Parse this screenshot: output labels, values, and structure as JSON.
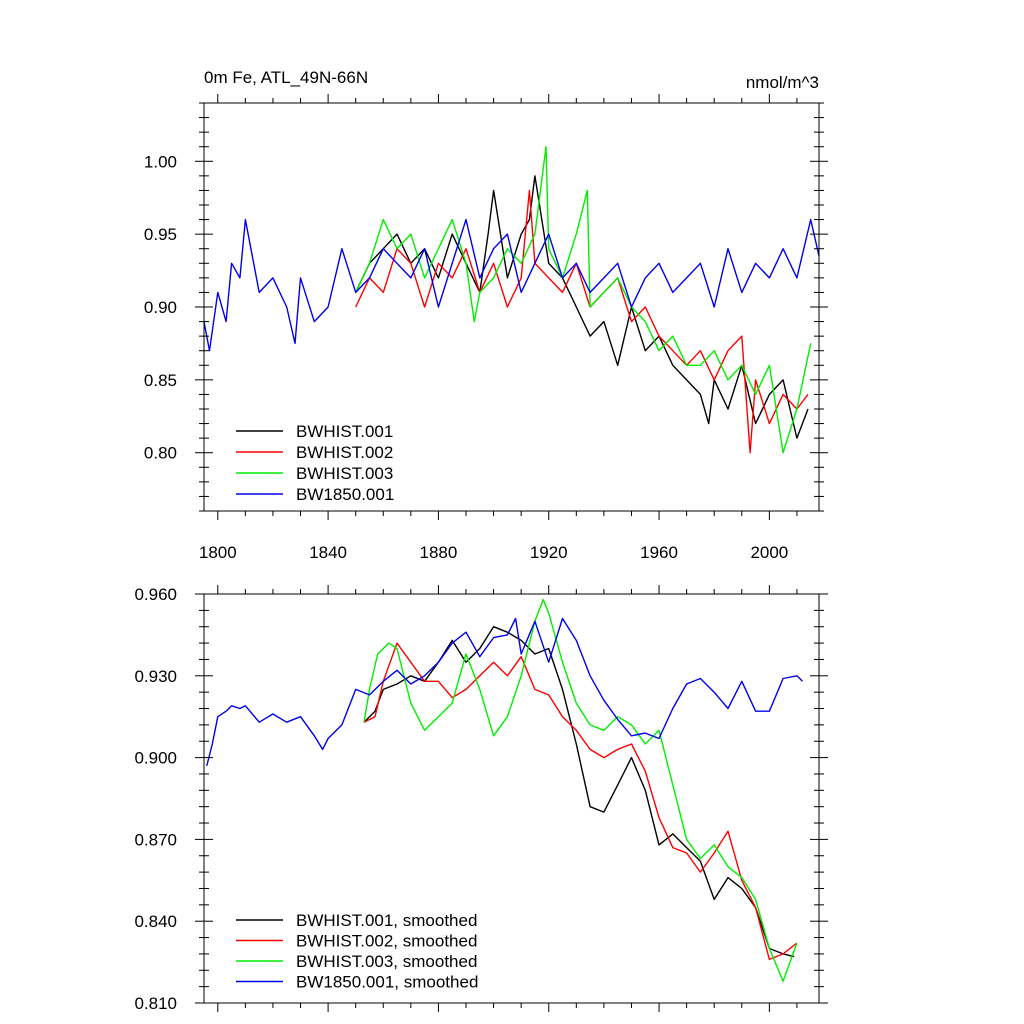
{
  "chart_data": [
    {
      "type": "line",
      "title_left": "0m Fe, ATL_49N-66N",
      "title_right": "nmol/m^3",
      "xlim": [
        1795,
        2018
      ],
      "ylim": [
        0.76,
        1.04
      ],
      "xticks": [
        1800,
        1840,
        1880,
        1920,
        1960,
        2000
      ],
      "xtick_labels": [
        "1800",
        "1840",
        "1880",
        "1920",
        "1960",
        "2000"
      ],
      "yticks": [
        0.8,
        0.85,
        0.9,
        0.95,
        1.0
      ],
      "ytick_labels": [
        "0.80",
        "0.85",
        "0.90",
        "0.95",
        "1.00"
      ],
      "legend": "bottom-left",
      "series": [
        {
          "name": "BWHIST.001",
          "color": "#000000",
          "x": [
            1850,
            1855,
            1860,
            1865,
            1870,
            1875,
            1880,
            1885,
            1890,
            1895,
            1898,
            1900,
            1905,
            1910,
            1913,
            1915,
            1920,
            1925,
            1930,
            1935,
            1940,
            1945,
            1950,
            1955,
            1960,
            1965,
            1970,
            1975,
            1978,
            1980,
            1985,
            1990,
            1995,
            2000,
            2005,
            2010,
            2014
          ],
          "y": [
            0.91,
            0.93,
            0.94,
            0.95,
            0.93,
            0.94,
            0.92,
            0.95,
            0.93,
            0.91,
            0.95,
            0.98,
            0.92,
            0.95,
            0.96,
            0.99,
            0.93,
            0.92,
            0.9,
            0.88,
            0.89,
            0.86,
            0.9,
            0.87,
            0.88,
            0.86,
            0.85,
            0.84,
            0.82,
            0.85,
            0.83,
            0.86,
            0.82,
            0.84,
            0.85,
            0.81,
            0.83
          ]
        },
        {
          "name": "BWHIST.002",
          "color": "#ff0000",
          "x": [
            1850,
            1855,
            1860,
            1865,
            1870,
            1875,
            1880,
            1885,
            1890,
            1895,
            1900,
            1905,
            1910,
            1913,
            1915,
            1920,
            1925,
            1930,
            1935,
            1940,
            1945,
            1950,
            1955,
            1960,
            1965,
            1970,
            1975,
            1980,
            1985,
            1990,
            1993,
            1995,
            2000,
            2005,
            2010,
            2014
          ],
          "y": [
            0.9,
            0.92,
            0.91,
            0.94,
            0.93,
            0.9,
            0.93,
            0.92,
            0.94,
            0.91,
            0.93,
            0.9,
            0.92,
            0.98,
            0.93,
            0.92,
            0.91,
            0.93,
            0.9,
            0.91,
            0.92,
            0.89,
            0.9,
            0.88,
            0.87,
            0.86,
            0.87,
            0.85,
            0.87,
            0.88,
            0.8,
            0.85,
            0.82,
            0.84,
            0.83,
            0.84
          ]
        },
        {
          "name": "BWHIST.003",
          "color": "#00ee00",
          "x": [
            1850,
            1855,
            1860,
            1865,
            1870,
            1875,
            1880,
            1885,
            1890,
            1893,
            1895,
            1900,
            1905,
            1910,
            1915,
            1919,
            1920,
            1925,
            1930,
            1934,
            1935,
            1940,
            1945,
            1950,
            1955,
            1960,
            1965,
            1970,
            1975,
            1980,
            1985,
            1990,
            1995,
            2000,
            2005,
            2010,
            2015
          ],
          "y": [
            0.91,
            0.93,
            0.96,
            0.94,
            0.95,
            0.92,
            0.94,
            0.96,
            0.93,
            0.89,
            0.91,
            0.92,
            0.94,
            0.93,
            0.95,
            1.01,
            0.94,
            0.92,
            0.95,
            0.98,
            0.9,
            0.91,
            0.92,
            0.9,
            0.89,
            0.87,
            0.88,
            0.86,
            0.86,
            0.87,
            0.85,
            0.86,
            0.84,
            0.86,
            0.8,
            0.83,
            0.875
          ]
        },
        {
          "name": "BW1850.001",
          "color": "#0000ee",
          "x": [
            1795,
            1797,
            1800,
            1803,
            1805,
            1808,
            1810,
            1815,
            1820,
            1825,
            1828,
            1830,
            1835,
            1840,
            1845,
            1850,
            1855,
            1860,
            1865,
            1870,
            1875,
            1880,
            1885,
            1890,
            1895,
            1900,
            1905,
            1910,
            1915,
            1920,
            1925,
            1930,
            1935,
            1940,
            1945,
            1950,
            1955,
            1960,
            1965,
            1970,
            1975,
            1980,
            1985,
            1990,
            1995,
            2000,
            2005,
            2010,
            2015,
            2018
          ],
          "y": [
            0.89,
            0.87,
            0.91,
            0.89,
            0.93,
            0.92,
            0.96,
            0.91,
            0.92,
            0.9,
            0.875,
            0.92,
            0.89,
            0.9,
            0.94,
            0.91,
            0.92,
            0.94,
            0.93,
            0.92,
            0.94,
            0.9,
            0.93,
            0.96,
            0.92,
            0.94,
            0.95,
            0.91,
            0.93,
            0.95,
            0.92,
            0.93,
            0.91,
            0.92,
            0.93,
            0.9,
            0.92,
            0.93,
            0.91,
            0.92,
            0.93,
            0.9,
            0.94,
            0.91,
            0.93,
            0.92,
            0.94,
            0.92,
            0.96,
            0.935
          ]
        }
      ]
    },
    {
      "type": "line",
      "xlim": [
        1795,
        2018
      ],
      "ylim": [
        0.81,
        0.96
      ],
      "xticks": [
        1800,
        1840,
        1880,
        1920,
        1960,
        2000
      ],
      "yticks": [
        0.81,
        0.84,
        0.87,
        0.9,
        0.93,
        0.96
      ],
      "ytick_labels": [
        "0.810",
        "0.840",
        "0.870",
        "0.900",
        "0.930",
        "0.960"
      ],
      "legend": "bottom-left",
      "series": [
        {
          "name": "BWHIST.001, smoothed",
          "color": "#000000",
          "x": [
            1853,
            1857,
            1860,
            1865,
            1870,
            1875,
            1880,
            1885,
            1890,
            1895,
            1900,
            1905,
            1910,
            1915,
            1920,
            1925,
            1930,
            1935,
            1940,
            1945,
            1950,
            1955,
            1960,
            1965,
            1970,
            1975,
            1980,
            1985,
            1990,
            1995,
            2000,
            2005,
            2009
          ],
          "y": [
            0.913,
            0.917,
            0.925,
            0.927,
            0.93,
            0.928,
            0.935,
            0.943,
            0.935,
            0.94,
            0.948,
            0.946,
            0.943,
            0.938,
            0.94,
            0.925,
            0.905,
            0.882,
            0.88,
            0.89,
            0.9,
            0.888,
            0.868,
            0.872,
            0.867,
            0.862,
            0.848,
            0.856,
            0.852,
            0.845,
            0.83,
            0.828,
            0.827
          ]
        },
        {
          "name": "BWHIST.002, smoothed",
          "color": "#ff0000",
          "x": [
            1853,
            1857,
            1860,
            1865,
            1870,
            1875,
            1880,
            1885,
            1890,
            1895,
            1900,
            1905,
            1910,
            1915,
            1920,
            1925,
            1930,
            1935,
            1940,
            1945,
            1950,
            1955,
            1960,
            1965,
            1970,
            1975,
            1980,
            1985,
            1990,
            1995,
            2000,
            2005,
            2010
          ],
          "y": [
            0.913,
            0.915,
            0.928,
            0.942,
            0.935,
            0.928,
            0.928,
            0.922,
            0.925,
            0.93,
            0.935,
            0.93,
            0.937,
            0.925,
            0.923,
            0.915,
            0.91,
            0.903,
            0.9,
            0.903,
            0.905,
            0.895,
            0.878,
            0.867,
            0.865,
            0.858,
            0.865,
            0.873,
            0.855,
            0.845,
            0.826,
            0.828,
            0.832
          ]
        },
        {
          "name": "BWHIST.003, smoothed",
          "color": "#00ee00",
          "x": [
            1853,
            1855,
            1858,
            1862,
            1865,
            1870,
            1875,
            1880,
            1885,
            1890,
            1895,
            1900,
            1905,
            1910,
            1915,
            1918,
            1920,
            1925,
            1930,
            1935,
            1940,
            1945,
            1950,
            1955,
            1960,
            1965,
            1970,
            1975,
            1980,
            1985,
            1990,
            1995,
            2000,
            2005,
            2010
          ],
          "y": [
            0.913,
            0.925,
            0.938,
            0.942,
            0.94,
            0.92,
            0.91,
            0.915,
            0.92,
            0.938,
            0.925,
            0.908,
            0.915,
            0.93,
            0.95,
            0.958,
            0.953,
            0.935,
            0.92,
            0.912,
            0.91,
            0.915,
            0.912,
            0.905,
            0.91,
            0.89,
            0.87,
            0.863,
            0.868,
            0.86,
            0.856,
            0.848,
            0.83,
            0.818,
            0.832
          ]
        },
        {
          "name": "BW1850.001, smoothed",
          "color": "#0000ee",
          "x": [
            1796,
            1798,
            1800,
            1803,
            1805,
            1808,
            1810,
            1815,
            1820,
            1825,
            1830,
            1835,
            1838,
            1840,
            1845,
            1850,
            1855,
            1860,
            1865,
            1870,
            1875,
            1880,
            1885,
            1890,
            1895,
            1900,
            1905,
            1908,
            1910,
            1915,
            1920,
            1925,
            1930,
            1935,
            1940,
            1945,
            1950,
            1955,
            1960,
            1965,
            1970,
            1975,
            1980,
            1985,
            1990,
            1995,
            2000,
            2005,
            2010,
            2012
          ],
          "y": [
            0.897,
            0.905,
            0.915,
            0.917,
            0.919,
            0.918,
            0.919,
            0.913,
            0.916,
            0.913,
            0.915,
            0.908,
            0.903,
            0.907,
            0.912,
            0.925,
            0.923,
            0.928,
            0.932,
            0.927,
            0.93,
            0.935,
            0.942,
            0.946,
            0.937,
            0.944,
            0.945,
            0.951,
            0.938,
            0.95,
            0.935,
            0.951,
            0.943,
            0.93,
            0.921,
            0.914,
            0.908,
            0.909,
            0.907,
            0.918,
            0.927,
            0.929,
            0.924,
            0.918,
            0.928,
            0.917,
            0.917,
            0.929,
            0.93,
            0.928
          ]
        }
      ]
    }
  ]
}
